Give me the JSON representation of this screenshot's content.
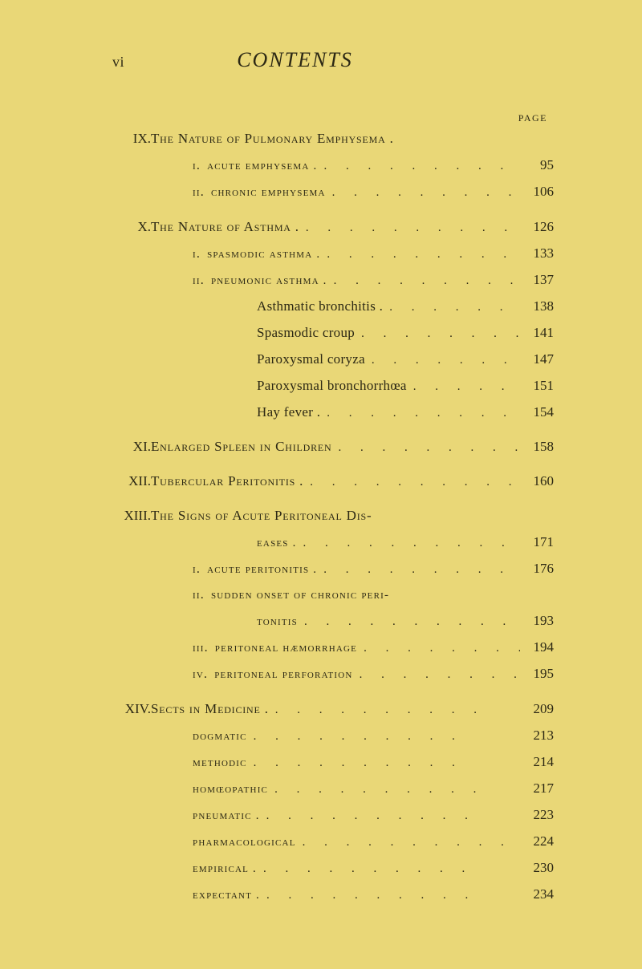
{
  "colors": {
    "paper": "#e9d777",
    "ink": "#2c2814"
  },
  "typography": {
    "body_font": "Times New Roman",
    "title_size_pt": 26,
    "line_size_pt": 17,
    "page_label_size_pt": 12
  },
  "header": {
    "page_number_top": "vi",
    "title": "CONTENTS",
    "page_label": "PAGE"
  },
  "chapters": [
    {
      "roman": "IX.",
      "title": "The Nature of Pulmonary Emphysema .",
      "page": "",
      "subs": [
        {
          "num": "i.",
          "label": "acute emphysema .",
          "page": "95"
        },
        {
          "num": "ii.",
          "label": "chronic emphysema",
          "page": "106"
        }
      ]
    },
    {
      "roman": "X.",
      "title": "The Nature of Asthma .",
      "page": "126",
      "subs": [
        {
          "num": "i.",
          "label": "spasmodic asthma .",
          "page": "133"
        },
        {
          "num": "ii.",
          "label": "pneumonic asthma .",
          "page": "137",
          "subsubs": [
            {
              "label": "Asthmatic bronchitis .",
              "page": "138"
            },
            {
              "label": "Spasmodic croup",
              "page": "141"
            },
            {
              "label": "Paroxysmal coryza",
              "page": "147"
            },
            {
              "label": "Paroxysmal bronchorrhœa",
              "page": "151"
            },
            {
              "label": "Hay fever .",
              "page": "154"
            }
          ]
        }
      ]
    },
    {
      "roman": "XI.",
      "title": "Enlarged Spleen in Children",
      "page": "158"
    },
    {
      "roman": "XII.",
      "title": "Tubercular Peritonitis .",
      "page": "160"
    },
    {
      "roman": "XIII.",
      "title": "The Signs of Acute Peritoneal Dis-",
      "page": "",
      "cont": {
        "label": "eases .",
        "page": "171"
      },
      "subs": [
        {
          "num": "i.",
          "label": "acute peritonitis .",
          "page": "176"
        },
        {
          "num": "ii.",
          "label": "sudden onset of chronic peri-",
          "page": "",
          "cont": {
            "label": "tonitis",
            "page": "193"
          }
        },
        {
          "num": "iii.",
          "label": "peritoneal hæmorrhage",
          "page": "194"
        },
        {
          "num": "iv.",
          "label": "peritoneal perforation",
          "page": "195"
        }
      ]
    },
    {
      "roman": "XIV.",
      "title": "Sects in Medicine .",
      "page": "209",
      "subs": [
        {
          "num": "",
          "label": "dogmatic",
          "page": "213"
        },
        {
          "num": "",
          "label": "methodic",
          "page": "214"
        },
        {
          "num": "",
          "label": "homœopathic",
          "page": "217"
        },
        {
          "num": "",
          "label": "pneumatic .",
          "page": "223"
        },
        {
          "num": "",
          "label": "pharmacological",
          "page": "224"
        },
        {
          "num": "",
          "label": "empirical .",
          "page": "230"
        },
        {
          "num": "",
          "label": "expectant .",
          "page": "234"
        }
      ]
    }
  ],
  "leader_dots": ". . . . . . . . . ."
}
